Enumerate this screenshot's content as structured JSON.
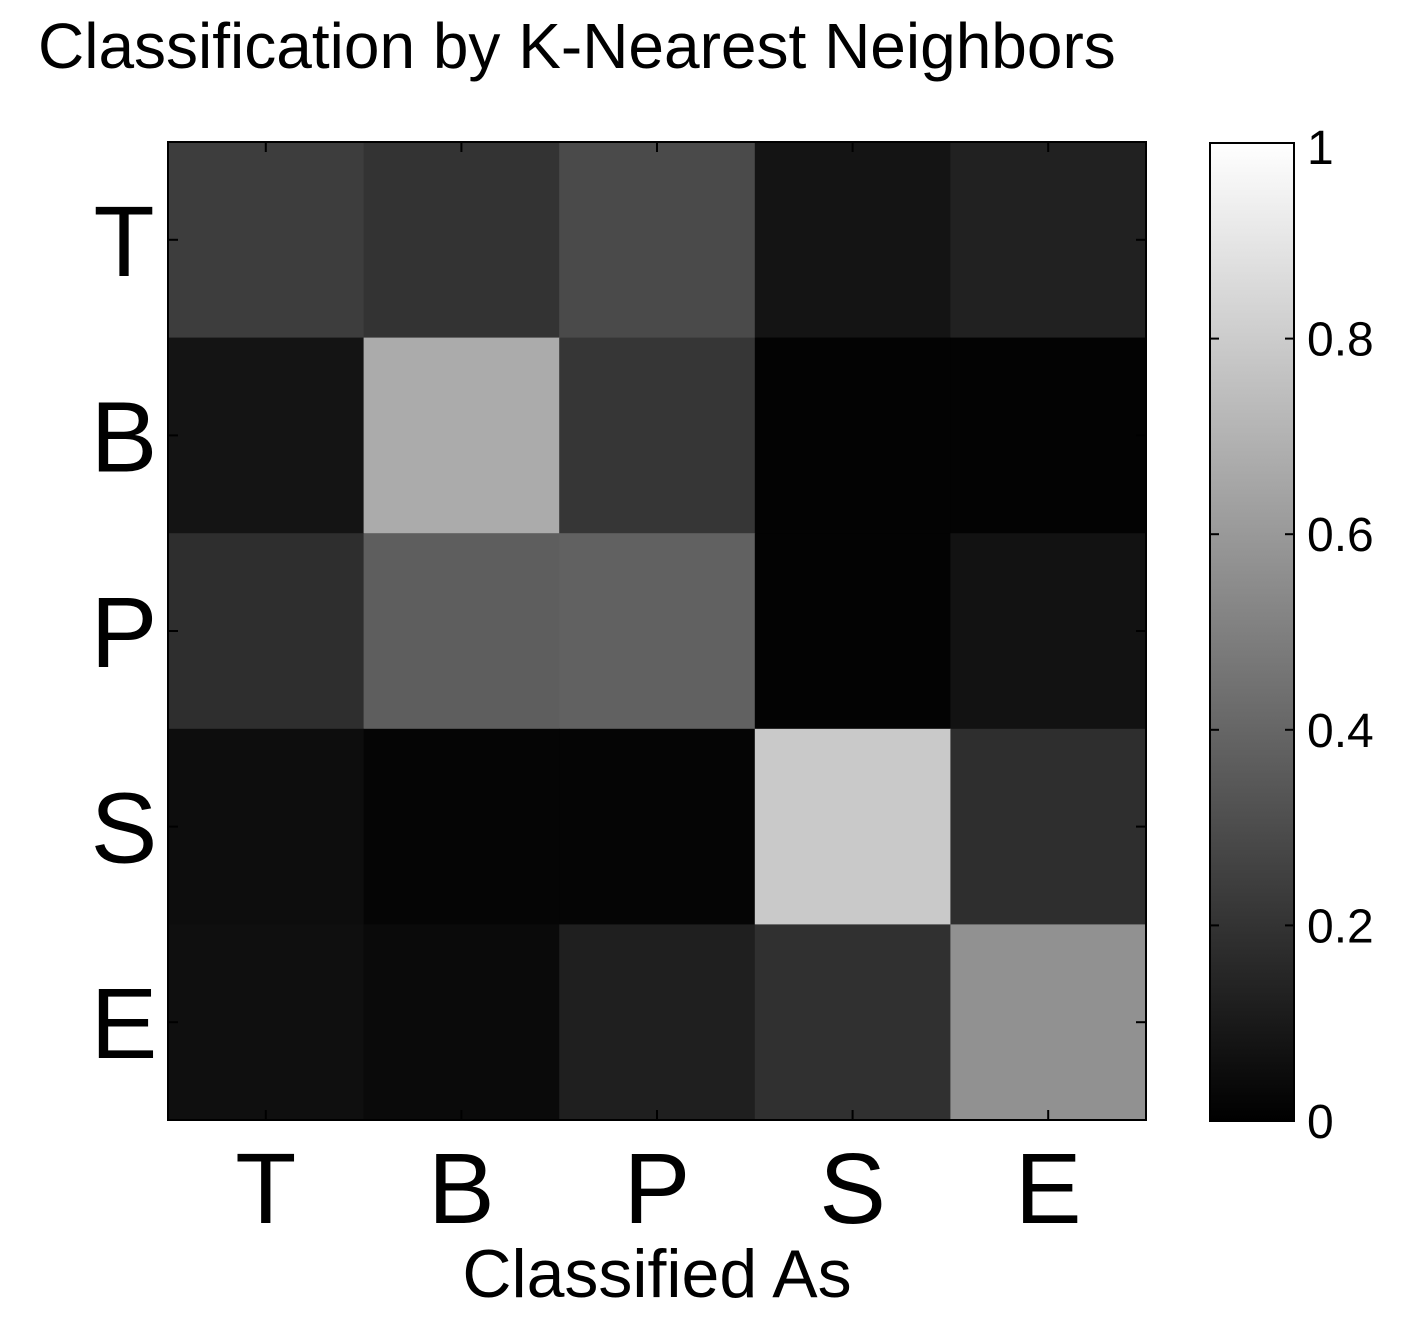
{
  "chart_data": {
    "type": "heatmap",
    "title": "Classification by K-Nearest Neighbors",
    "xlabel": "Classified As",
    "ylabel": "",
    "rows": [
      "T",
      "B",
      "P",
      "S",
      "E"
    ],
    "columns": [
      "T",
      "B",
      "P",
      "S",
      "E"
    ],
    "values": [
      [
        0.24,
        0.2,
        0.29,
        0.08,
        0.13
      ],
      [
        0.08,
        0.67,
        0.21,
        0.01,
        0.01
      ],
      [
        0.18,
        0.37,
        0.38,
        0.01,
        0.07
      ],
      [
        0.05,
        0.02,
        0.02,
        0.79,
        0.18
      ],
      [
        0.06,
        0.04,
        0.12,
        0.19,
        0.57
      ]
    ],
    "colormap": "gray",
    "color_range": [
      0,
      1
    ],
    "colorbar": {
      "ticks": [
        0,
        0.2,
        0.4,
        0.6,
        0.8,
        1
      ],
      "tick_labels": [
        "0",
        "0.2",
        "0.4",
        "0.6",
        "0.8",
        "1"
      ],
      "placement": "right"
    },
    "grid": false
  }
}
